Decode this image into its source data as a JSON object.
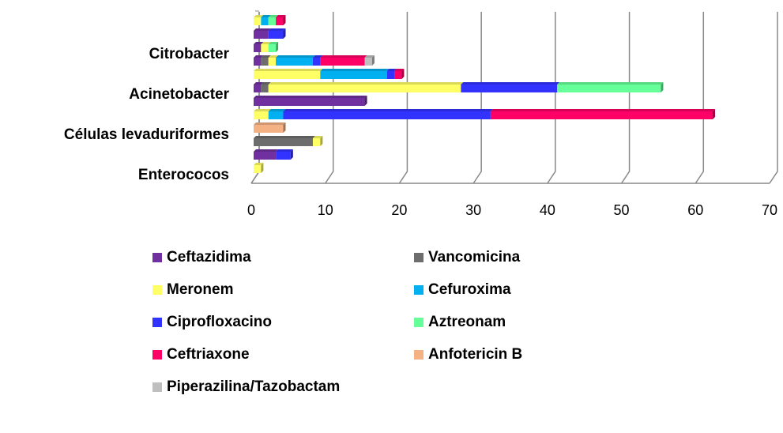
{
  "chart_data": {
    "type": "stacked_bar_horizontal",
    "categories": [
      "Enterococos",
      null,
      null,
      "Células levaduriformes",
      null,
      null,
      "Acinetobacter",
      null,
      null,
      "Citrobacter",
      null,
      null
    ],
    "series": [
      {
        "name": "Ceftazidima",
        "color": "#7030a0",
        "values": [
          null,
          3,
          null,
          null,
          null,
          15,
          1,
          null,
          1,
          1,
          2,
          null
        ]
      },
      {
        "name": "Vancomicina",
        "color": "#6d6d6d",
        "values": [
          null,
          null,
          8,
          null,
          null,
          null,
          1,
          null,
          1,
          null,
          null,
          null
        ]
      },
      {
        "name": "Meronem",
        "color": "#ffff66",
        "values": [
          1,
          null,
          1,
          null,
          2,
          null,
          26,
          9,
          1,
          1,
          null,
          1
        ]
      },
      {
        "name": "Cefuroxima",
        "color": "#00b0f0",
        "values": [
          null,
          null,
          null,
          null,
          2,
          null,
          null,
          9,
          5,
          null,
          null,
          1
        ]
      },
      {
        "name": "Ciprofloxacino",
        "color": "#3333ff",
        "values": [
          null,
          2,
          null,
          null,
          28,
          null,
          13,
          1,
          1,
          null,
          2,
          null
        ]
      },
      {
        "name": "Aztreonam",
        "color": "#66ff99",
        "values": [
          null,
          null,
          null,
          null,
          null,
          null,
          14,
          null,
          null,
          1,
          null,
          1
        ]
      },
      {
        "name": "Ceftriaxone",
        "color": "#ff0066",
        "values": [
          null,
          null,
          null,
          null,
          30,
          null,
          null,
          1,
          6,
          null,
          null,
          1
        ]
      },
      {
        "name": "Anfotericin B",
        "color": "#f4b183",
        "values": [
          null,
          null,
          null,
          4,
          null,
          null,
          null,
          null,
          null,
          null,
          null,
          null
        ]
      },
      {
        "name": "Piperazilina/Tazobactam",
        "color": "#bfbfbf",
        "values": [
          null,
          null,
          null,
          null,
          null,
          null,
          null,
          null,
          1,
          null,
          null,
          null
        ]
      }
    ],
    "xlim": [
      0,
      70
    ],
    "xticks": [
      0,
      10,
      20,
      30,
      40,
      50,
      60,
      70
    ],
    "grid": true,
    "legend": "bottom"
  }
}
